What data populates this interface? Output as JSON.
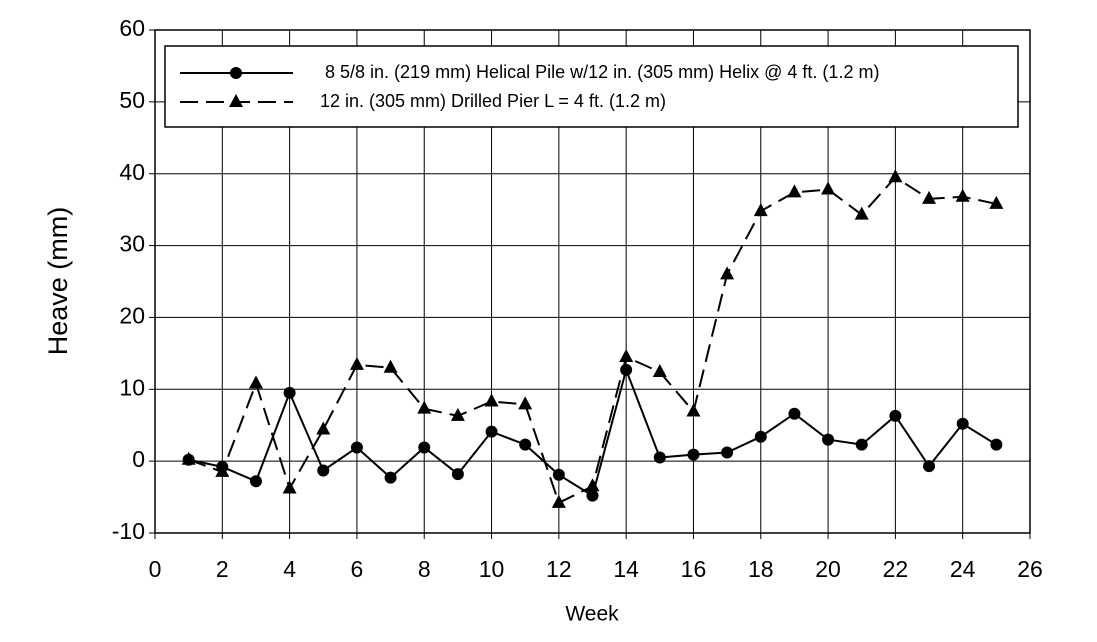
{
  "chart_data": {
    "type": "line",
    "xlabel": "Week",
    "ylabel": "Heave (mm)",
    "x": [
      1,
      2,
      3,
      4,
      5,
      6,
      7,
      8,
      9,
      10,
      11,
      12,
      13,
      14,
      15,
      16,
      17,
      18,
      19,
      20,
      21,
      22,
      23,
      24,
      25
    ],
    "series": [
      {
        "name": " 8 5/8 in. (219 mm) Helical Pile w/12 in. (305 mm) Helix @ 4 ft. (1.2 m)",
        "color": "#000000",
        "line_style": "solid",
        "marker": "circle",
        "values": [
          0.2,
          -0.8,
          -2.8,
          9.5,
          -1.3,
          1.9,
          -2.3,
          1.9,
          -1.8,
          4.1,
          2.3,
          -1.9,
          -4.8,
          12.7,
          0.5,
          0.9,
          1.2,
          3.4,
          6.6,
          3.0,
          2.3,
          6.3,
          -0.7,
          5.2,
          2.3
        ]
      },
      {
        "name": "12 in. (305 mm) Drilled Pier L = 4 ft. (1.2 m)",
        "color": "#000000",
        "line_style": "dashed",
        "marker": "triangle",
        "values": [
          0.2,
          -1.5,
          10.8,
          -3.8,
          4.4,
          13.4,
          13.0,
          7.3,
          6.3,
          8.3,
          7.9,
          -5.8,
          -3.5,
          14.5,
          12.4,
          6.9,
          26.0,
          34.8,
          37.4,
          37.8,
          34.3,
          39.5,
          36.5,
          36.8,
          35.8
        ]
      }
    ],
    "xlim": [
      0,
      26
    ],
    "xticks": [
      0,
      2,
      4,
      6,
      8,
      10,
      12,
      14,
      16,
      18,
      20,
      22,
      24,
      26
    ],
    "ylim": [
      -10,
      60
    ],
    "yticks": [
      -10,
      0,
      10,
      20,
      30,
      40,
      50,
      60
    ],
    "grid": true,
    "legend": "top"
  }
}
